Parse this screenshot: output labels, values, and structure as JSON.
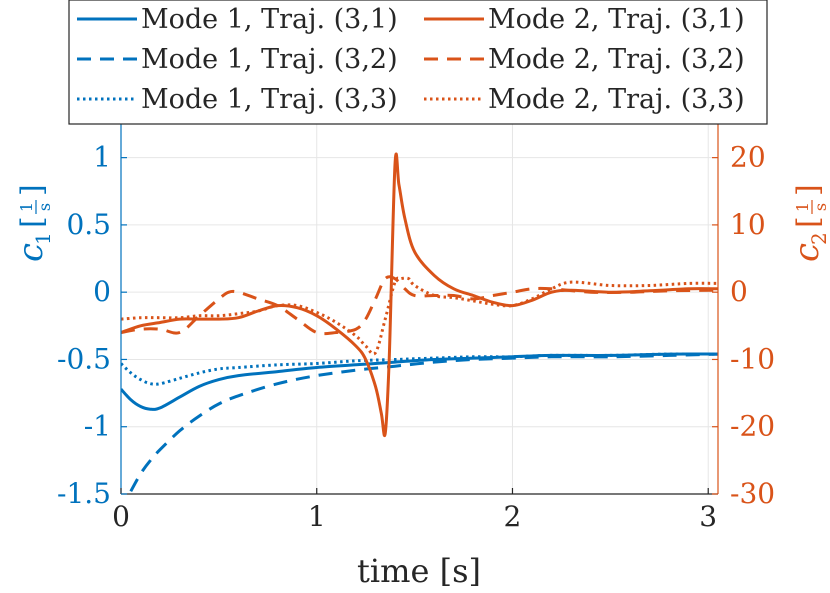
{
  "chart_data": {
    "type": "line",
    "xlabel": "time [s]",
    "xlim": [
      0,
      3.05
    ],
    "xticks": [
      0,
      1,
      2,
      3
    ],
    "xtick_labels": [
      "0",
      "1",
      "2",
      "3"
    ],
    "left_axis": {
      "label_main": "c",
      "label_sub": "1",
      "unit_num": "1",
      "unit_den": "s",
      "ylim": [
        -1.5,
        1.25
      ],
      "ticks": [
        -1.5,
        -1,
        -0.5,
        0,
        0.5,
        1
      ],
      "tick_labels": [
        "-1.5",
        "-1",
        "-0.5",
        "0",
        "0.5",
        "1"
      ],
      "color": "#0072BD"
    },
    "right_axis": {
      "label_main": "c",
      "label_sub": "2",
      "unit_num": "1",
      "unit_den": "s",
      "ylim": [
        -30,
        25
      ],
      "ticks": [
        -30,
        -20,
        -10,
        0,
        10,
        20
      ],
      "tick_labels": [
        "-30",
        "-20",
        "-10",
        "0",
        "10",
        "20"
      ],
      "color": "#D95319"
    },
    "grid": true,
    "legend_position": "top, two columns above the axes",
    "series": [
      {
        "name": "Mode 1, Traj. (3,1)",
        "axis": "left",
        "style": "solid",
        "color": "#0072BD",
        "x": [
          0,
          0.05,
          0.1,
          0.15,
          0.2,
          0.3,
          0.4,
          0.5,
          0.6,
          0.8,
          1.0,
          1.2,
          1.4,
          1.6,
          1.8,
          2.0,
          2.2,
          2.5,
          2.8,
          3.05
        ],
        "y": [
          -0.72,
          -0.8,
          -0.85,
          -0.87,
          -0.86,
          -0.78,
          -0.7,
          -0.65,
          -0.62,
          -0.59,
          -0.56,
          -0.54,
          -0.52,
          -0.5,
          -0.49,
          -0.48,
          -0.47,
          -0.47,
          -0.46,
          -0.46
        ]
      },
      {
        "name": "Mode 1, Traj. (3,2)",
        "axis": "left",
        "style": "dashed",
        "color": "#0072BD",
        "x": [
          0.05,
          0.1,
          0.15,
          0.2,
          0.3,
          0.4,
          0.5,
          0.6,
          0.8,
          1.0,
          1.2,
          1.4,
          1.6,
          1.8,
          2.0,
          2.2,
          2.5,
          2.8,
          3.05
        ],
        "y": [
          -1.48,
          -1.35,
          -1.25,
          -1.17,
          -1.03,
          -0.92,
          -0.83,
          -0.77,
          -0.68,
          -0.62,
          -0.58,
          -0.55,
          -0.52,
          -0.5,
          -0.49,
          -0.48,
          -0.48,
          -0.47,
          -0.46
        ]
      },
      {
        "name": "Mode 1, Traj. (3,3)",
        "axis": "left",
        "style": "dotted",
        "color": "#0072BD",
        "x": [
          0,
          0.05,
          0.1,
          0.15,
          0.2,
          0.3,
          0.4,
          0.5,
          0.6,
          0.8,
          1.0,
          1.2,
          1.4,
          1.6,
          1.8,
          2.0,
          2.2,
          2.5,
          2.8,
          3.05
        ],
        "y": [
          -0.53,
          -0.6,
          -0.65,
          -0.68,
          -0.68,
          -0.64,
          -0.6,
          -0.57,
          -0.56,
          -0.54,
          -0.53,
          -0.51,
          -0.5,
          -0.49,
          -0.48,
          -0.48,
          -0.47,
          -0.47,
          -0.46,
          -0.46
        ]
      },
      {
        "name": "Mode 2, Traj. (3,1)",
        "axis": "right",
        "style": "solid",
        "color": "#D95319",
        "x": [
          0,
          0.1,
          0.2,
          0.3,
          0.4,
          0.5,
          0.6,
          0.7,
          0.8,
          0.9,
          1.0,
          1.1,
          1.2,
          1.25,
          1.3,
          1.33,
          1.35,
          1.37,
          1.4,
          1.42,
          1.45,
          1.5,
          1.6,
          1.7,
          1.8,
          1.9,
          2.0,
          2.1,
          2.2,
          2.3,
          2.5,
          2.7,
          2.9,
          3.05
        ],
        "y": [
          -6,
          -5,
          -4.5,
          -4,
          -4,
          -4,
          -3.8,
          -2.8,
          -2,
          -2.3,
          -3.5,
          -5.5,
          -8,
          -10,
          -14,
          -18,
          -21,
          -10,
          19,
          16,
          11,
          6,
          2.5,
          0.5,
          -0.5,
          -1.5,
          -2,
          -1.2,
          0,
          0.3,
          0,
          0.2,
          0.5,
          0.5
        ]
      },
      {
        "name": "Mode 2, Traj. (3,2)",
        "axis": "right",
        "style": "dashed",
        "color": "#D95319",
        "x": [
          0,
          0.1,
          0.2,
          0.3,
          0.4,
          0.5,
          0.55,
          0.6,
          0.7,
          0.8,
          0.9,
          1.0,
          1.1,
          1.2,
          1.25,
          1.3,
          1.35,
          1.4,
          1.45,
          1.5,
          1.6,
          1.7,
          1.8,
          1.9,
          2.0,
          2.1,
          2.2,
          2.4,
          2.6,
          2.8,
          3.05
        ],
        "y": [
          -6,
          -5.5,
          -5.5,
          -6,
          -3.5,
          -1,
          0,
          0,
          -1,
          -2,
          -4,
          -6,
          -6,
          -5.5,
          -4,
          -1,
          2,
          2,
          0.5,
          -0.5,
          -0.5,
          -0.5,
          -1,
          -0.5,
          0,
          0.5,
          0.5,
          0,
          0,
          0.2,
          0.3
        ]
      },
      {
        "name": "Mode 2, Traj. (3,3)",
        "axis": "right",
        "style": "dotted",
        "color": "#D95319",
        "x": [
          0,
          0.1,
          0.2,
          0.3,
          0.4,
          0.5,
          0.6,
          0.7,
          0.8,
          0.9,
          1.0,
          1.1,
          1.2,
          1.25,
          1.3,
          1.35,
          1.4,
          1.43,
          1.47,
          1.5,
          1.6,
          1.7,
          1.8,
          1.9,
          2.0,
          2.1,
          2.2,
          2.3,
          2.5,
          2.7,
          2.9,
          3.05
        ],
        "y": [
          -4,
          -3.8,
          -3.8,
          -3.8,
          -3.5,
          -3.5,
          -3.2,
          -2.8,
          -2,
          -2,
          -3,
          -4.5,
          -6.5,
          -8,
          -9,
          -4,
          1.5,
          2,
          2,
          1,
          -0.5,
          -0.8,
          -1.3,
          -1.8,
          -2,
          -1,
          0.5,
          1.5,
          1,
          1,
          1.3,
          1.3
        ]
      }
    ]
  }
}
